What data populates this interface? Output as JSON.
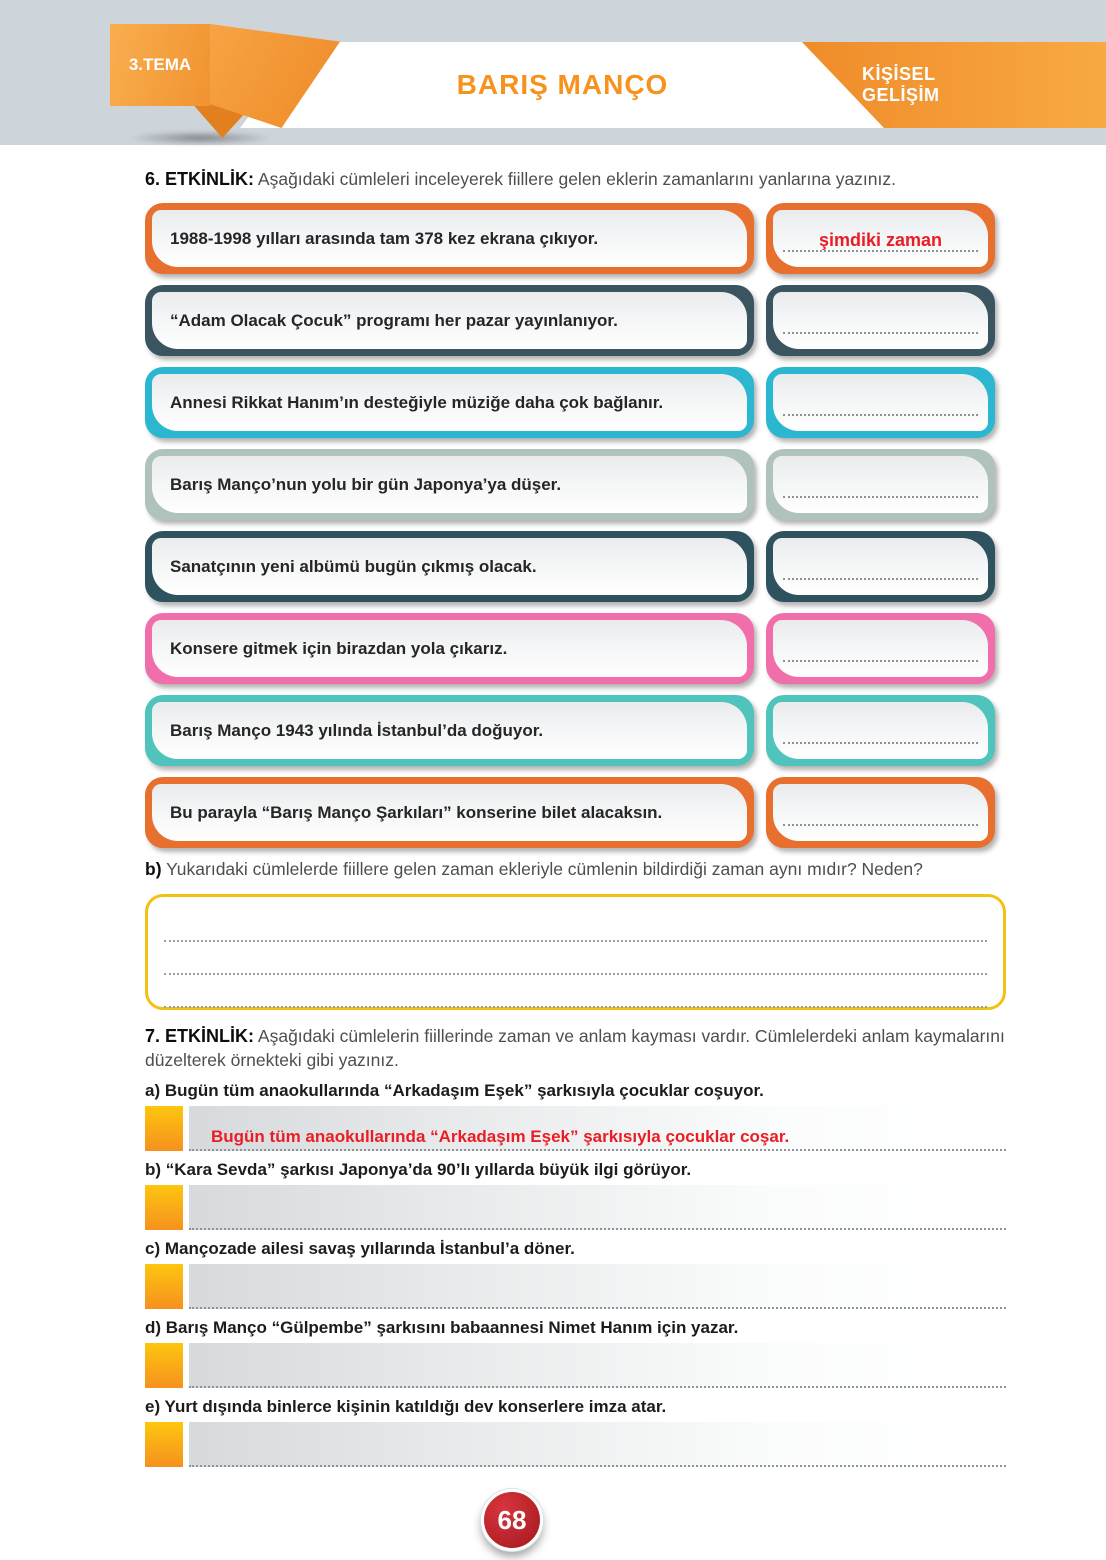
{
  "header": {
    "tema_label": "3.TEMA",
    "title": "BARIŞ MANÇO",
    "category_label": "KİŞİSEL GELİŞİM"
  },
  "colors": {
    "header_band": "#cdd4da",
    "brand_orange": "#f6921e",
    "answer_red": "#ec1c24",
    "yellow_box_border": "#f2c114",
    "badge_red": "#b01f26"
  },
  "activity6": {
    "heading_label": "6. ETKİNLİK:",
    "heading_text": "Aşağıdaki cümleleri inceleyerek fiillere gelen eklerin zamanlarını yanlarına yazınız.",
    "rows": [
      {
        "sentence": "1988-1998 yılları arasında tam 378 kez ekrana çıkıyor.",
        "answer": "şimdiki zaman",
        "color": "#e8702f"
      },
      {
        "sentence": "“Adam Olacak Çocuk” programı her pazar yayınlanıyor.",
        "answer": "",
        "color": "#3a555f"
      },
      {
        "sentence": "Annesi Rikkat Hanım’ın desteğiyle müziğe daha çok bağlanır.",
        "answer": "",
        "color": "#2bb7cf"
      },
      {
        "sentence": "Barış Manço’nun yolu bir gün Japonya’ya düşer.",
        "answer": "",
        "color": "#b0c2bc"
      },
      {
        "sentence": "Sanatçının yeni albümü bugün çıkmış olacak.",
        "answer": "",
        "color": "#2e525e"
      },
      {
        "sentence": "Konsere gitmek için birazdan yola çıkarız.",
        "answer": "",
        "color": "#f06ea9"
      },
      {
        "sentence": "Barış Manço 1943 yılında İstanbul’da doğuyor.",
        "answer": "",
        "color": "#4fc4bd"
      },
      {
        "sentence": "Bu parayla “Barış Manço Şarkıları” konserine bilet alacaksın.",
        "answer": "",
        "color": "#e8702f"
      }
    ],
    "part_b_label": "b)",
    "part_b_text": "Yukarıdaki cümlelerde fiillere gelen zaman ekleriyle cümlenin bildirdiği zaman aynı mıdır? Neden?"
  },
  "activity7": {
    "heading_label": "7. ETKİNLİK:",
    "heading_text": "Aşağıdaki cümlelerin fiillerinde zaman ve anlam kayması vardır. Cümlelerdeki anlam kaymalarını düzelterek örnekteki gibi yazınız.",
    "items": [
      {
        "label": "a)",
        "sentence": "Bugün tüm anaokullarında “Arkadaşım Eşek” şarkısıyla çocuklar coşuyor.",
        "answer": "Bugün tüm anaokullarında “Arkadaşım Eşek” şarkısıyla çocuklar coşar."
      },
      {
        "label": "b)",
        "sentence": "“Kara Sevda” şarkısı Japonya’da 90’lı yıllarda büyük ilgi görüyor.",
        "answer": ""
      },
      {
        "label": "c)",
        "sentence": "Mançozade ailesi savaş yıllarında İstanbul’a döner.",
        "answer": ""
      },
      {
        "label": "d)",
        "sentence": "Barış Manço “Gülpembe” şarkısını babaannesi Nimet Hanım için yazar.",
        "answer": ""
      },
      {
        "label": "e)",
        "sentence": "Yurt dışında binlerce kişinin katıldığı dev konserlere imza atar.",
        "answer": ""
      }
    ]
  },
  "footer": {
    "page_number": "68"
  }
}
